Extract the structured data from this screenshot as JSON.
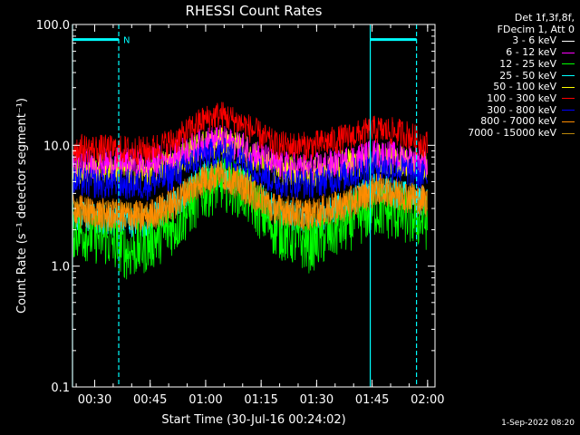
{
  "chart_data": {
    "type": "line",
    "title": "RHESSI Count Rates",
    "xlabel": "Start Time (30-Jul-16 00:24:02)",
    "ylabel": "Count Rate (s⁻¹ detector segment⁻¹)",
    "yscale": "log",
    "ylim": [
      0.1,
      100.0
    ],
    "xlim_minutes_after_start": [
      0,
      98
    ],
    "y_ticks": [
      "0.1",
      "1.0",
      "10.0",
      "100.0"
    ],
    "x_ticks": [
      {
        "label": "00:30",
        "minutes": 6
      },
      {
        "label": "00:45",
        "minutes": 21
      },
      {
        "label": "01:00",
        "minutes": 36
      },
      {
        "label": "01:15",
        "minutes": 51
      },
      {
        "label": "01:30",
        "minutes": 66
      },
      {
        "label": "01:45",
        "minutes": 81
      },
      {
        "label": "02:00",
        "minutes": 96
      }
    ],
    "legend_header": [
      "Det 1f,3f,8f,",
      "FDecim 1, Att 0"
    ],
    "legend_position": "top-right outside",
    "series": [
      {
        "name": "3 - 6 keV",
        "color": "#000000",
        "profile": [
          [
            0,
            2.2
          ],
          [
            9,
            2.3
          ],
          [
            20,
            2.2
          ],
          [
            28,
            3.0
          ],
          [
            35,
            5.0
          ],
          [
            40,
            5.5
          ],
          [
            46,
            4.6
          ],
          [
            55,
            2.4
          ],
          [
            64,
            2.1
          ],
          [
            74,
            3.0
          ],
          [
            82,
            4.3
          ],
          [
            90,
            3.5
          ],
          [
            96,
            3.0
          ]
        ]
      },
      {
        "name": "6 - 12 keV",
        "color": "#ff00ff",
        "profile": [
          [
            0,
            7.0
          ],
          [
            9,
            7.2
          ],
          [
            20,
            7.0
          ],
          [
            28,
            8.2
          ],
          [
            35,
            10.5
          ],
          [
            40,
            11.0
          ],
          [
            46,
            9.8
          ],
          [
            55,
            6.8
          ],
          [
            64,
            6.4
          ],
          [
            74,
            7.4
          ],
          [
            82,
            8.5
          ],
          [
            90,
            7.8
          ],
          [
            96,
            7.2
          ]
        ]
      },
      {
        "name": "12 - 25 keV",
        "color": "#00ff00",
        "profile": [
          [
            0,
            2.0
          ],
          [
            9,
            1.7
          ],
          [
            15,
            1.3
          ],
          [
            20,
            1.5
          ],
          [
            28,
            2.2
          ],
          [
            35,
            4.0
          ],
          [
            40,
            5.0
          ],
          [
            46,
            4.2
          ],
          [
            55,
            2.0
          ],
          [
            64,
            1.5
          ],
          [
            74,
            2.2
          ],
          [
            82,
            3.0
          ],
          [
            90,
            2.6
          ],
          [
            96,
            2.3
          ]
        ]
      },
      {
        "name": "25 - 50 keV",
        "color": "#00ffff",
        "profile": [
          [
            0,
            2.6
          ],
          [
            9,
            2.4
          ],
          [
            20,
            2.3
          ],
          [
            28,
            3.3
          ],
          [
            35,
            5.5
          ],
          [
            40,
            6.0
          ],
          [
            46,
            5.0
          ],
          [
            55,
            2.8
          ],
          [
            64,
            2.4
          ],
          [
            74,
            3.2
          ],
          [
            82,
            4.5
          ],
          [
            90,
            3.8
          ],
          [
            96,
            3.4
          ]
        ]
      },
      {
        "name": "50 - 100 keV",
        "color": "#ffff00",
        "profile": [
          [
            0,
            6.3
          ],
          [
            9,
            6.5
          ],
          [
            20,
            6.2
          ],
          [
            28,
            7.5
          ],
          [
            35,
            10.0
          ],
          [
            40,
            10.5
          ],
          [
            46,
            9.3
          ],
          [
            55,
            6.3
          ],
          [
            64,
            6.0
          ],
          [
            74,
            6.9
          ],
          [
            82,
            8.0
          ],
          [
            90,
            7.4
          ],
          [
            96,
            6.8
          ]
        ]
      },
      {
        "name": "100 - 300 keV",
        "color": "#ff0000",
        "profile": [
          [
            0,
            9.5
          ],
          [
            9,
            9.3
          ],
          [
            20,
            9.0
          ],
          [
            28,
            11.0
          ],
          [
            35,
            16.0
          ],
          [
            40,
            18.0
          ],
          [
            46,
            15.0
          ],
          [
            55,
            10.0
          ],
          [
            64,
            9.8
          ],
          [
            74,
            11.5
          ],
          [
            82,
            13.5
          ],
          [
            90,
            12.5
          ],
          [
            96,
            10.0
          ]
        ]
      },
      {
        "name": "300 - 800 keV",
        "color": "#0000ff",
        "profile": [
          [
            0,
            5.0
          ],
          [
            9,
            4.8
          ],
          [
            20,
            4.7
          ],
          [
            28,
            5.8
          ],
          [
            35,
            8.2
          ],
          [
            40,
            8.8
          ],
          [
            46,
            7.5
          ],
          [
            55,
            5.0
          ],
          [
            64,
            4.8
          ],
          [
            74,
            5.6
          ],
          [
            82,
            6.8
          ],
          [
            90,
            6.2
          ],
          [
            96,
            5.5
          ]
        ]
      },
      {
        "name": "800 - 7000 keV",
        "color": "#ff8c00",
        "profile": [
          [
            0,
            3.0
          ],
          [
            9,
            2.7
          ],
          [
            20,
            2.6
          ],
          [
            28,
            3.5
          ],
          [
            35,
            5.3
          ],
          [
            40,
            5.8
          ],
          [
            46,
            4.8
          ],
          [
            55,
            3.0
          ],
          [
            64,
            2.7
          ],
          [
            74,
            3.3
          ],
          [
            82,
            4.4
          ],
          [
            90,
            3.9
          ],
          [
            96,
            3.5
          ]
        ]
      },
      {
        "name": "7000 - 15000 keV",
        "color": "#b8860b",
        "profile": [
          [
            0,
            2.8
          ],
          [
            9,
            2.6
          ],
          [
            20,
            2.5
          ],
          [
            28,
            3.3
          ],
          [
            35,
            5.0
          ],
          [
            40,
            5.5
          ],
          [
            46,
            4.5
          ],
          [
            55,
            2.8
          ],
          [
            64,
            2.6
          ],
          [
            74,
            3.1
          ],
          [
            82,
            4.1
          ],
          [
            90,
            3.7
          ],
          [
            96,
            3.3
          ]
        ]
      }
    ],
    "markers": [
      {
        "style": "solid",
        "minutes": 0
      },
      {
        "style": "dashed",
        "minutes": 12.5
      },
      {
        "style": "solid",
        "minutes": 80.5
      },
      {
        "style": "dashed",
        "minutes": 93
      },
      {
        "style": "bar",
        "from_minutes": 0,
        "to_minutes": 12.5,
        "y": 75,
        "label": "N"
      },
      {
        "style": "bar",
        "from_minutes": 80.5,
        "to_minutes": 93,
        "y": 75,
        "label": ""
      }
    ],
    "marker_color": "#00ffff",
    "timestamp": "1-Sep-2022 08:20"
  }
}
